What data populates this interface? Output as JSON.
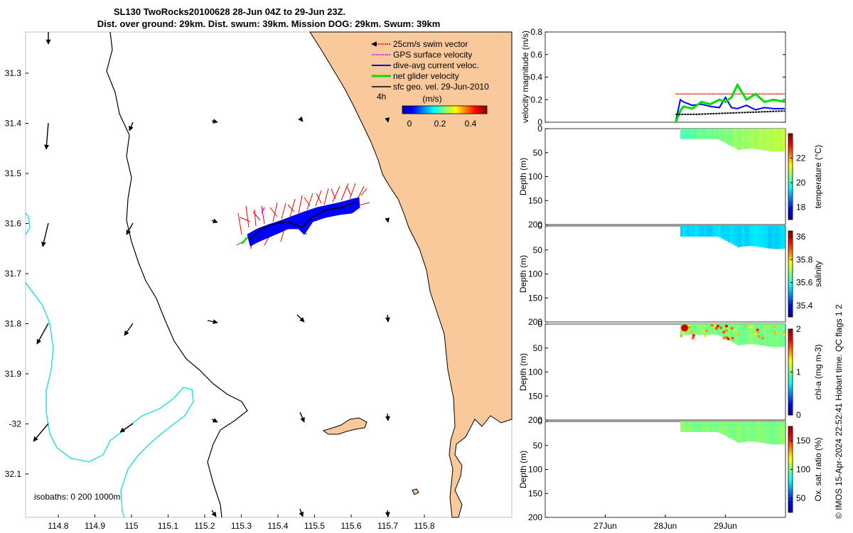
{
  "title": {
    "line1": "SL130 TwoRocks20100628 28-Jun 04Z to 29-Jun 23Z.",
    "line2": "Dist. over ground: 29km. Dist. swum: 39km. Mission DOG: 29km. Swum: 39km"
  },
  "map": {
    "lat_ticks": [
      "31.3",
      "31.4",
      "31.5",
      "31.6",
      "31.7",
      "31.8",
      "31.9",
      "-32",
      "32.1"
    ],
    "lon_ticks": [
      "114.8",
      "114.9",
      "115",
      "115.1",
      "115.2",
      "115.3",
      "115.4",
      "115.5",
      "115.6",
      "115.7",
      "115.8"
    ],
    "legend": [
      {
        "label": "25cm/s swim vector",
        "color": "#ff0000"
      },
      {
        "label": "GPS surface velocity",
        "color": "#ff00ff"
      },
      {
        "label": "dive-avg current veloc.",
        "color": "#0000ff"
      },
      {
        "label": "net glider velocity",
        "color": "#00dd00"
      },
      {
        "label": "sfc geo. vel. 29-Jun-2010",
        "color": "#000000"
      }
    ],
    "colorbar": {
      "tag": "4h",
      "label": "(m/s)",
      "ticks": [
        "0",
        "0.2",
        "0.4"
      ]
    },
    "isobath_note": "isobaths: 0   200  1000m",
    "land_color": "#f9c99b",
    "isobath_color_deep": "#33dddd"
  },
  "chart_data": [
    {
      "type": "line",
      "title": "",
      "ylabel": "velocity magnitude (m/s)",
      "ylim": [
        0,
        0.8
      ],
      "yticks": [
        "0",
        "0.2",
        "0.4",
        "0.6",
        "0.8"
      ],
      "xlim_days": [
        26.0,
        30.0
      ],
      "series": [
        {
          "name": "25cm/s swim vector",
          "color": "#ff0000",
          "x": [
            28.17,
            29.99
          ],
          "y": [
            0.25,
            0.25
          ]
        },
        {
          "name": "dive-avg current veloc.",
          "color": "#0000ff",
          "x": [
            28.17,
            28.25,
            28.3,
            28.45,
            28.6,
            28.75,
            28.9,
            29.0,
            29.1,
            29.2,
            29.35,
            29.5,
            29.65,
            29.8,
            29.99
          ],
          "y": [
            0.0,
            0.2,
            0.18,
            0.15,
            0.16,
            0.14,
            0.13,
            0.22,
            0.13,
            0.12,
            0.15,
            0.11,
            0.13,
            0.12,
            0.12
          ]
        },
        {
          "name": "net glider velocity",
          "color": "#00dd00",
          "x": [
            28.17,
            28.25,
            28.3,
            28.45,
            28.6,
            28.75,
            28.9,
            29.0,
            29.1,
            29.2,
            29.35,
            29.5,
            29.65,
            29.8,
            29.99
          ],
          "y": [
            0.0,
            0.1,
            0.14,
            0.12,
            0.18,
            0.16,
            0.2,
            0.18,
            0.22,
            0.33,
            0.2,
            0.25,
            0.18,
            0.2,
            0.18
          ]
        },
        {
          "name": "sfc geo. vel.",
          "color": "#000000",
          "x": [
            28.17,
            28.5,
            29.0,
            29.5,
            29.99
          ],
          "y": [
            0.07,
            0.07,
            0.08,
            0.09,
            0.1
          ]
        }
      ]
    },
    {
      "type": "heatmap",
      "variable": "temperature (°C)",
      "ylabel": "Depth (m)",
      "ylim": [
        200,
        0
      ],
      "yticks": [
        "0",
        "50",
        "100",
        "150",
        "200"
      ],
      "cticks": [
        "18",
        "20",
        "22"
      ],
      "crange": [
        17,
        24
      ],
      "value_typical": 20.6,
      "x_range_days": [
        28.25,
        29.99
      ],
      "max_depth": 45
    },
    {
      "type": "heatmap",
      "variable": "salinity",
      "ylabel": "Depth (m)",
      "ylim": [
        200,
        0
      ],
      "yticks": [
        "0",
        "50",
        "100",
        "150",
        "200"
      ],
      "cticks": [
        "35.4",
        "35.6",
        "35.8",
        "36"
      ],
      "crange": [
        35.3,
        36.05
      ],
      "value_typical": 35.55,
      "x_range_days": [
        28.25,
        29.99
      ],
      "max_depth": 45
    },
    {
      "type": "heatmap",
      "variable": "chl-a (mg m-3)",
      "ylabel": "Depth (m)",
      "ylim": [
        200,
        0
      ],
      "yticks": [
        "0",
        "50",
        "100",
        "150",
        "200"
      ],
      "cticks": [
        "0",
        "1",
        "2"
      ],
      "crange": [
        0,
        2
      ],
      "value_typical": 1.0,
      "x_range_days": [
        28.25,
        29.99
      ],
      "max_depth": 45
    },
    {
      "type": "heatmap",
      "variable": "Ox. sat. ratio (%)",
      "ylabel": "Depth (m)",
      "ylim": [
        200,
        0
      ],
      "yticks": [
        "0",
        "50",
        "100",
        "150",
        "200"
      ],
      "cticks": [
        "50",
        "100",
        "150"
      ],
      "crange": [
        25,
        175
      ],
      "value_typical": 100,
      "x_range_days": [
        28.25,
        29.99
      ],
      "max_depth": 45
    }
  ],
  "time_axis": {
    "ticks": [
      "27Jun",
      "28Jun",
      "29Jun"
    ]
  },
  "credit": "© IMOS 15-Apr-2024 22:52:41 Hobart time. QC flags 1  2"
}
